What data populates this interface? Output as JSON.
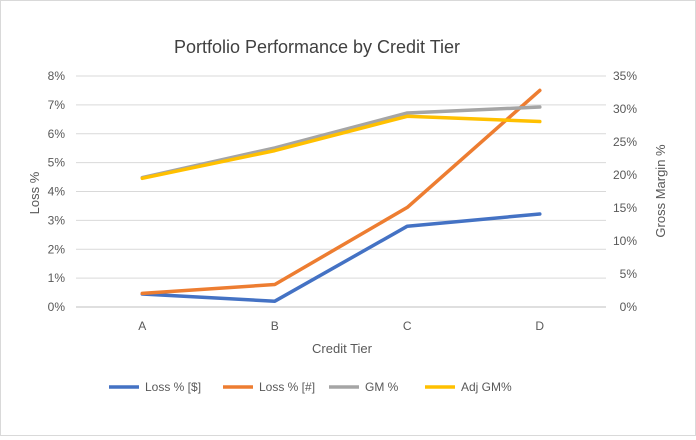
{
  "chart_data": {
    "type": "line",
    "title": "Portfolio Performance by Credit Tier",
    "xlabel": "Credit Tier",
    "ylabel": "Loss %",
    "y2label": "Gross Margin %",
    "categories": [
      "A",
      "B",
      "C",
      "D"
    ],
    "ylim": [
      0,
      8
    ],
    "y2lim": [
      0,
      35
    ],
    "y_ticks": [
      "0%",
      "1%",
      "2%",
      "3%",
      "4%",
      "5%",
      "6%",
      "7%",
      "8%"
    ],
    "y2_ticks": [
      "0%",
      "5%",
      "10%",
      "15%",
      "20%",
      "25%",
      "30%",
      "35%"
    ],
    "grid": true,
    "legend": "bottom",
    "series": [
      {
        "name": "Loss % [$]",
        "axis": "left",
        "color": "#4472C4",
        "values": [
          0.45,
          0.2,
          2.8,
          3.22
        ]
      },
      {
        "name": "Loss % [#]",
        "axis": "left",
        "color": "#ED7D31",
        "values": [
          0.47,
          0.78,
          3.45,
          7.5
        ]
      },
      {
        "name": "GM %",
        "axis": "right",
        "color": "#A5A5A5",
        "values": [
          19.6,
          24.1,
          29.4,
          30.3
        ]
      },
      {
        "name": "Adj GM%",
        "axis": "right",
        "color": "#FFC000",
        "values": [
          19.5,
          23.7,
          28.9,
          28.1
        ]
      }
    ]
  }
}
